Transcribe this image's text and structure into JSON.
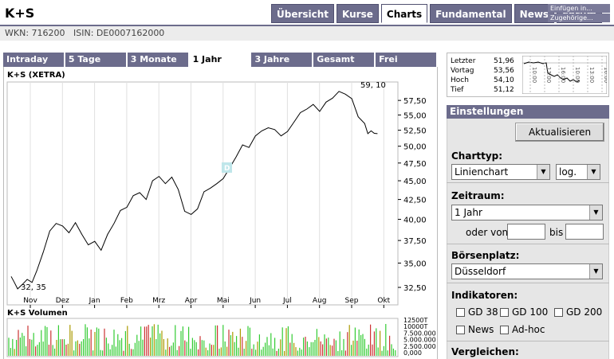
{
  "header": {
    "title": "K+S",
    "tabs": [
      "Übersicht",
      "Kurse",
      "Charts",
      "Fundamental",
      "News",
      "Forum"
    ],
    "active_tab": "Charts",
    "insert_buttons": [
      "Einfügen in...",
      "Zugehörige..."
    ],
    "wkn_line": "WKN: 716200   ISIN: DE0007162000"
  },
  "range_tabs": [
    "Intraday",
    "5 Tage",
    "3 Monate",
    "1 Jahr",
    "3 Jahre",
    "Gesamt",
    "Frei"
  ],
  "active_range": "1 Jahr",
  "chart_title": "K+S (XETRA)",
  "volume_title": "K+S Volumen",
  "dividend_marker": "D",
  "quote": {
    "labels": [
      "Letzter",
      "Vortag",
      "Hoch",
      "Tief"
    ],
    "values": [
      "51,96",
      "53,56",
      "54,10",
      "51,12"
    ],
    "mini_ticks": [
      "10:00",
      "13:00",
      "16:00",
      "10:00",
      "13:00",
      "16:00"
    ]
  },
  "settings": {
    "header": "Einstellungen",
    "refresh_label": "Aktualisieren",
    "charttyp_label": "Charttyp:",
    "charttyp_value": "Linienchart",
    "scale_value": "log.",
    "zeitraum_label": "Zeitraum:",
    "zeitraum_value": "1 Jahr",
    "oder_von": "oder von",
    "bis": "bis",
    "boersenplatz_label": "Börsenplatz:",
    "boersenplatz_value": "Düsseldorf",
    "indikatoren_label": "Indikatoren:",
    "indicators": [
      "GD 38",
      "GD 100",
      "GD 200",
      "News",
      "Ad-hoc"
    ],
    "vergleichen_label": "Vergleichen:"
  },
  "chart_data": [
    {
      "type": "line",
      "title": "K+S (XETRA)",
      "x_tick_labels": [
        "Nov",
        "Dez",
        "Jan",
        "Feb",
        "Mrz",
        "Apr",
        "Mai",
        "Jun",
        "Jul",
        "Aug",
        "Sep",
        "Okt"
      ],
      "y_tick_labels": [
        "32,50",
        "35,00",
        "37,50",
        "40,00",
        "42,50",
        "45,00",
        "47,50",
        "50,00",
        "52,50",
        "55,00",
        "57,50"
      ],
      "y_scale": "log",
      "ylim": [
        31.8,
        59.8
      ],
      "annotations": {
        "max": "59, 10",
        "min": "32, 35"
      },
      "series": [
        {
          "x_month_index": [
            0.0,
            0.1,
            0.2,
            0.35,
            0.5,
            0.65,
            0.8,
            1.0,
            1.2,
            1.4,
            1.6,
            1.8,
            2.0,
            2.2,
            2.4,
            2.6,
            2.8,
            3.0,
            3.2,
            3.4,
            3.6,
            3.8,
            4.0,
            4.2,
            4.4,
            4.6,
            4.8,
            5.0,
            5.2,
            5.4,
            5.6,
            5.8,
            6.0,
            6.2,
            6.4,
            6.6,
            6.8,
            7.0,
            7.2,
            7.4,
            7.6,
            7.8,
            8.0,
            8.2,
            8.4,
            8.6,
            8.8,
            9.0,
            9.2,
            9.4,
            9.6,
            9.8,
            10.0,
            10.2,
            10.4,
            10.6,
            10.8,
            11.0,
            11.1,
            11.2,
            11.3,
            11.4
          ],
          "values": [
            33.6,
            33.0,
            32.35,
            32.8,
            33.3,
            33.0,
            34.2,
            36.2,
            38.6,
            39.5,
            39.2,
            38.4,
            39.6,
            38.2,
            37.0,
            37.4,
            36.4,
            38.2,
            39.5,
            41.1,
            41.5,
            43.0,
            43.4,
            42.5,
            45.0,
            45.6,
            44.6,
            45.5,
            43.8,
            41.0,
            40.6,
            41.3,
            43.5,
            44.0,
            44.6,
            45.3,
            46.8,
            48.4,
            50.2,
            49.8,
            51.6,
            52.4,
            52.9,
            52.6,
            51.6,
            52.3,
            53.8,
            55.4,
            56.0,
            56.8,
            55.6,
            57.2,
            57.9,
            59.1,
            58.6,
            57.8,
            54.7,
            53.6,
            51.96,
            52.4,
            52.0,
            51.96
          ]
        }
      ]
    },
    {
      "type": "bar",
      "title": "K+S Volumen",
      "y_tick_labels": [
        "12500T",
        "10000T",
        "7.500.000",
        "5.000.000",
        "2.500.000",
        "0,000"
      ],
      "ylim": [
        0,
        12500000
      ]
    }
  ]
}
